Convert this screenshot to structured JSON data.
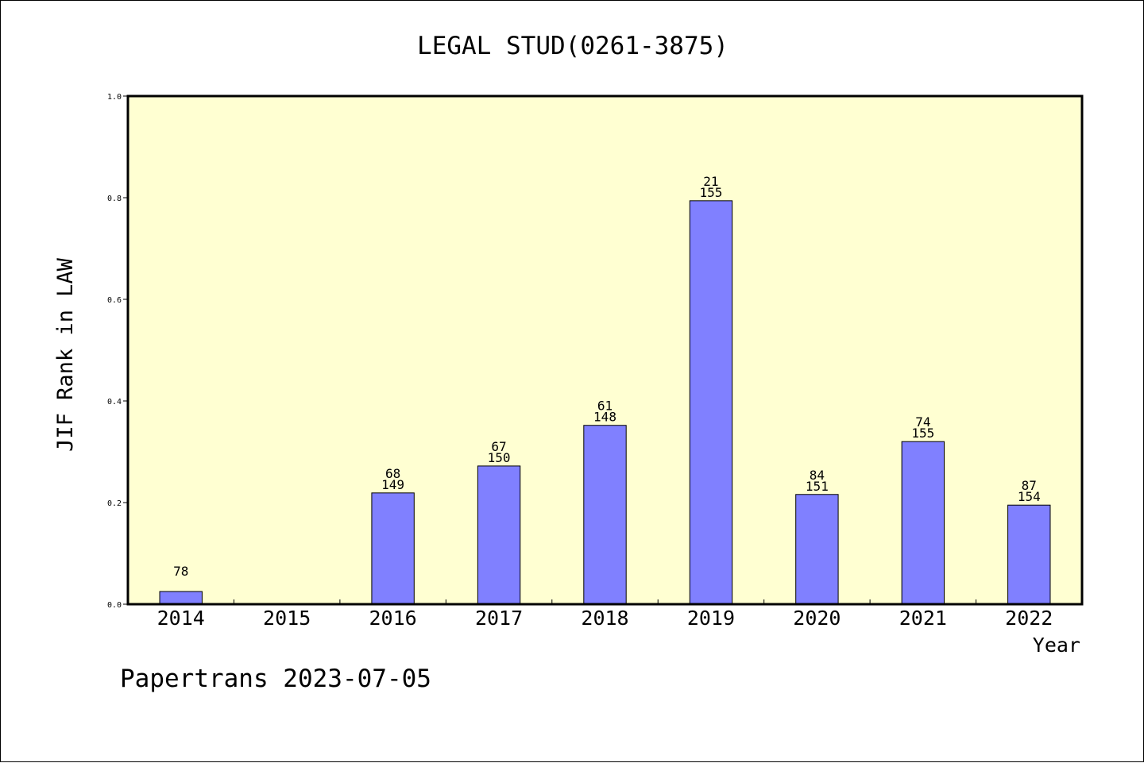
{
  "chart_data": {
    "type": "bar",
    "title": "LEGAL STUD(0261-3875)",
    "xlabel": "Year",
    "ylabel": "JIF Rank in LAW",
    "footer": "Papertrans 2023-07-05",
    "ylim": [
      0,
      1.0
    ],
    "yticks": [
      "0.0",
      "0.2",
      "0.4",
      "0.6",
      "0.8",
      "1.0"
    ],
    "categories": [
      "2014",
      "2015",
      "2016",
      "2017",
      "2018",
      "2019",
      "2020",
      "2021",
      "2022"
    ],
    "values": [
      0.025,
      0,
      0.219,
      0.272,
      0.352,
      0.794,
      0.216,
      0.32,
      0.195
    ],
    "rank_labels": [
      "78",
      "",
      "68",
      "67",
      "61",
      "21",
      "84",
      "74",
      "87"
    ],
    "total_labels": [
      "",
      "",
      "149",
      "150",
      "148",
      "155",
      "151",
      "155",
      "154"
    ],
    "grid": false,
    "legend": "none",
    "colors": {
      "plot_background": "#ffffd2",
      "bar_fill": "#8080ff",
      "bar_stroke": "#000000"
    }
  }
}
